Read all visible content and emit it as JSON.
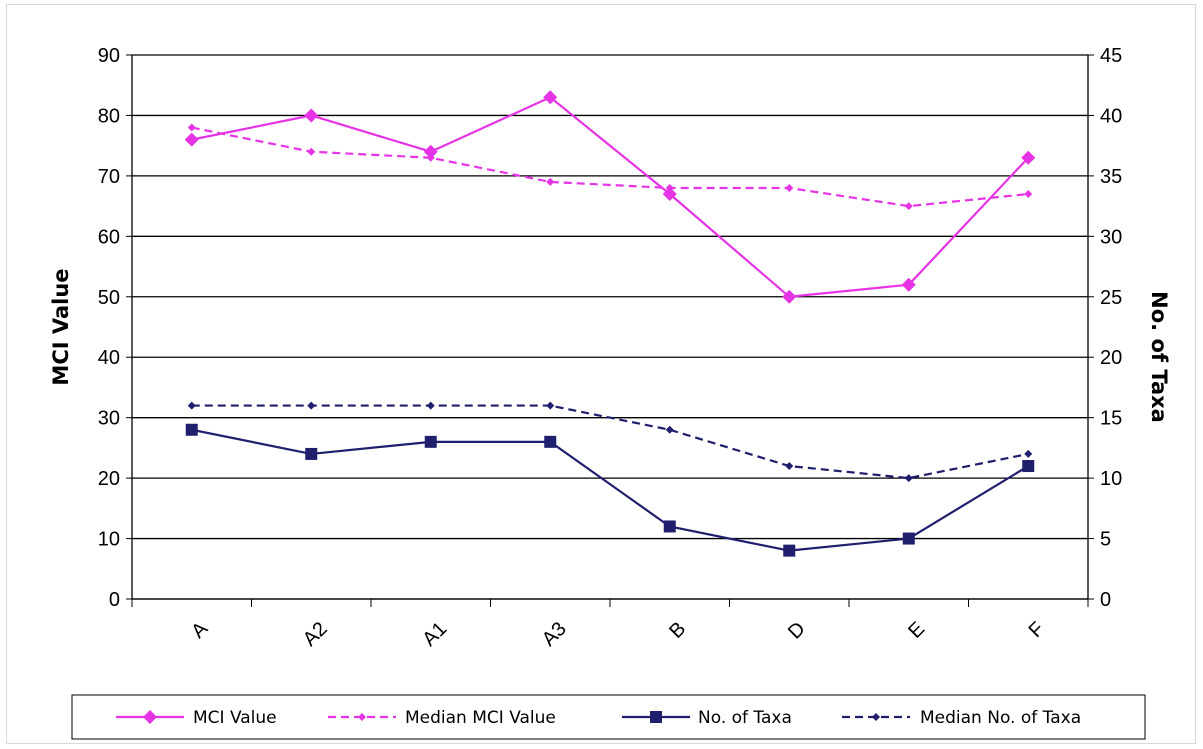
{
  "chart_data": {
    "type": "line",
    "categories": [
      "A",
      "A2",
      "A1",
      "A3",
      "B",
      "D",
      "E",
      "F"
    ],
    "ylabel": "MCI Value",
    "y2label": "No. of Taxa",
    "ylim": [
      0,
      90
    ],
    "y2lim": [
      0,
      45
    ],
    "yticks": [
      "0",
      "10",
      "20",
      "30",
      "40",
      "50",
      "60",
      "70",
      "80",
      "90"
    ],
    "y2ticks": [
      "0",
      "5",
      "10",
      "15",
      "20",
      "25",
      "30",
      "35",
      "40",
      "45"
    ],
    "grid": "horizontal",
    "legend_position": "bottom",
    "series": [
      {
        "name": "MCI Value",
        "axis": "left",
        "color": "#e633e6",
        "style": "solid",
        "marker": "diamond",
        "values": [
          76,
          80,
          74,
          83,
          67,
          50,
          52,
          73
        ]
      },
      {
        "name": "Median MCI Value",
        "axis": "left",
        "color": "#e633e6",
        "style": "dashed",
        "marker": "small-diamond",
        "values": [
          78,
          74,
          73,
          69,
          68,
          68,
          65,
          67
        ]
      },
      {
        "name": "No. of Taxa",
        "axis": "right",
        "color": "#1f1f6e",
        "style": "solid",
        "marker": "square",
        "values": [
          14,
          12,
          13,
          13,
          6,
          4,
          5,
          11
        ]
      },
      {
        "name": "Median No. of Taxa",
        "axis": "right",
        "color": "#1f1f6e",
        "style": "dashed",
        "marker": "small-diamond",
        "values": [
          16,
          16,
          16,
          16,
          14,
          11,
          10,
          12
        ]
      }
    ]
  }
}
